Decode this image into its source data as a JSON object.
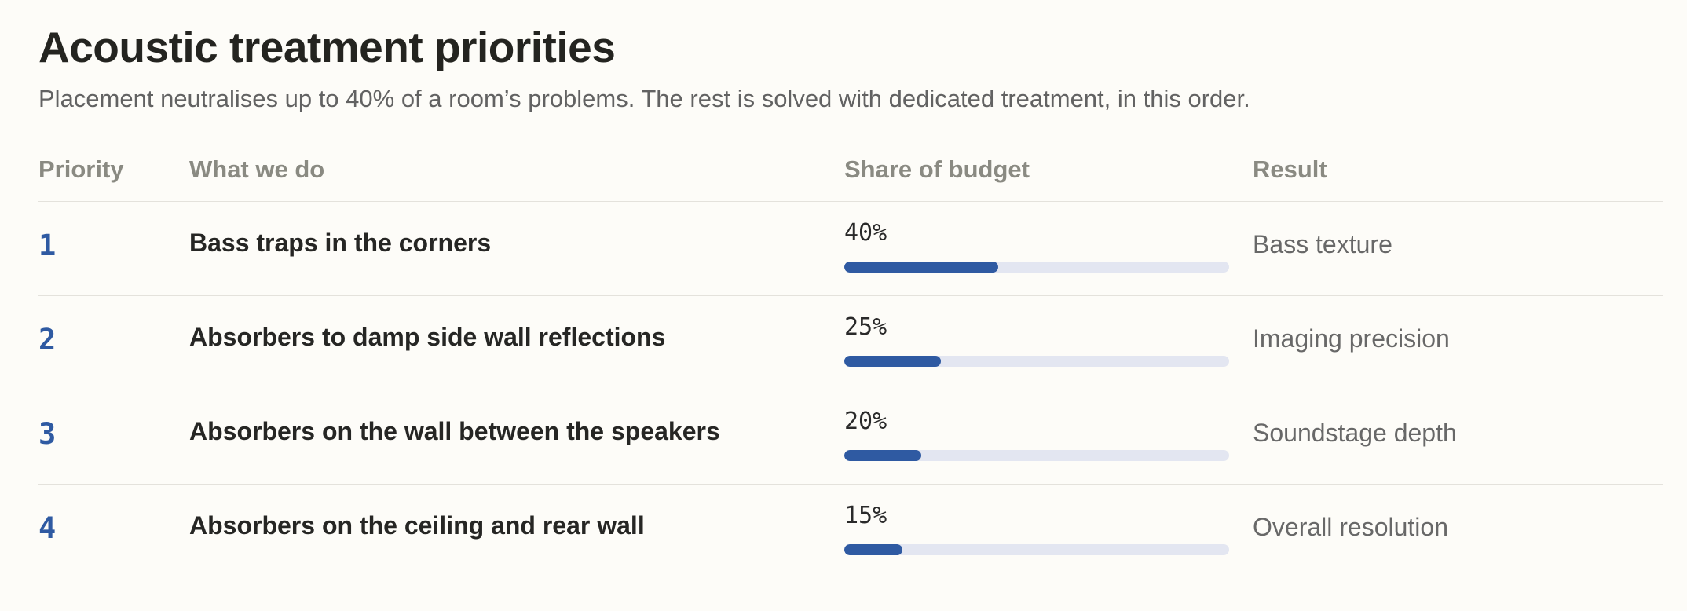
{
  "header": {
    "title": "Acoustic treatment priorities",
    "subtitle": "Placement neutralises up to 40% of a room’s problems. The rest is solved with dedicated treatment, in this order."
  },
  "table": {
    "columns": [
      "Priority",
      "What we do",
      "Share of budget",
      "Result"
    ],
    "rows": [
      {
        "priority": "1",
        "what": "Bass traps in the corners",
        "share_label": "40%",
        "share": 40,
        "result": "Bass texture"
      },
      {
        "priority": "2",
        "what": "Absorbers to damp side wall reflections",
        "share_label": "25%",
        "share": 25,
        "result": "Imaging precision"
      },
      {
        "priority": "3",
        "what": "Absorbers on the wall between the speakers",
        "share_label": "20%",
        "share": 20,
        "result": "Soundstage depth"
      },
      {
        "priority": "4",
        "what": "Absorbers on the ceiling and rear wall",
        "share_label": "15%",
        "share": 15,
        "result": "Overall resolution"
      }
    ]
  },
  "colors": {
    "accent": "#2f5aa2",
    "bar_track": "#e3e6f1",
    "background": "#fdfcf8"
  }
}
